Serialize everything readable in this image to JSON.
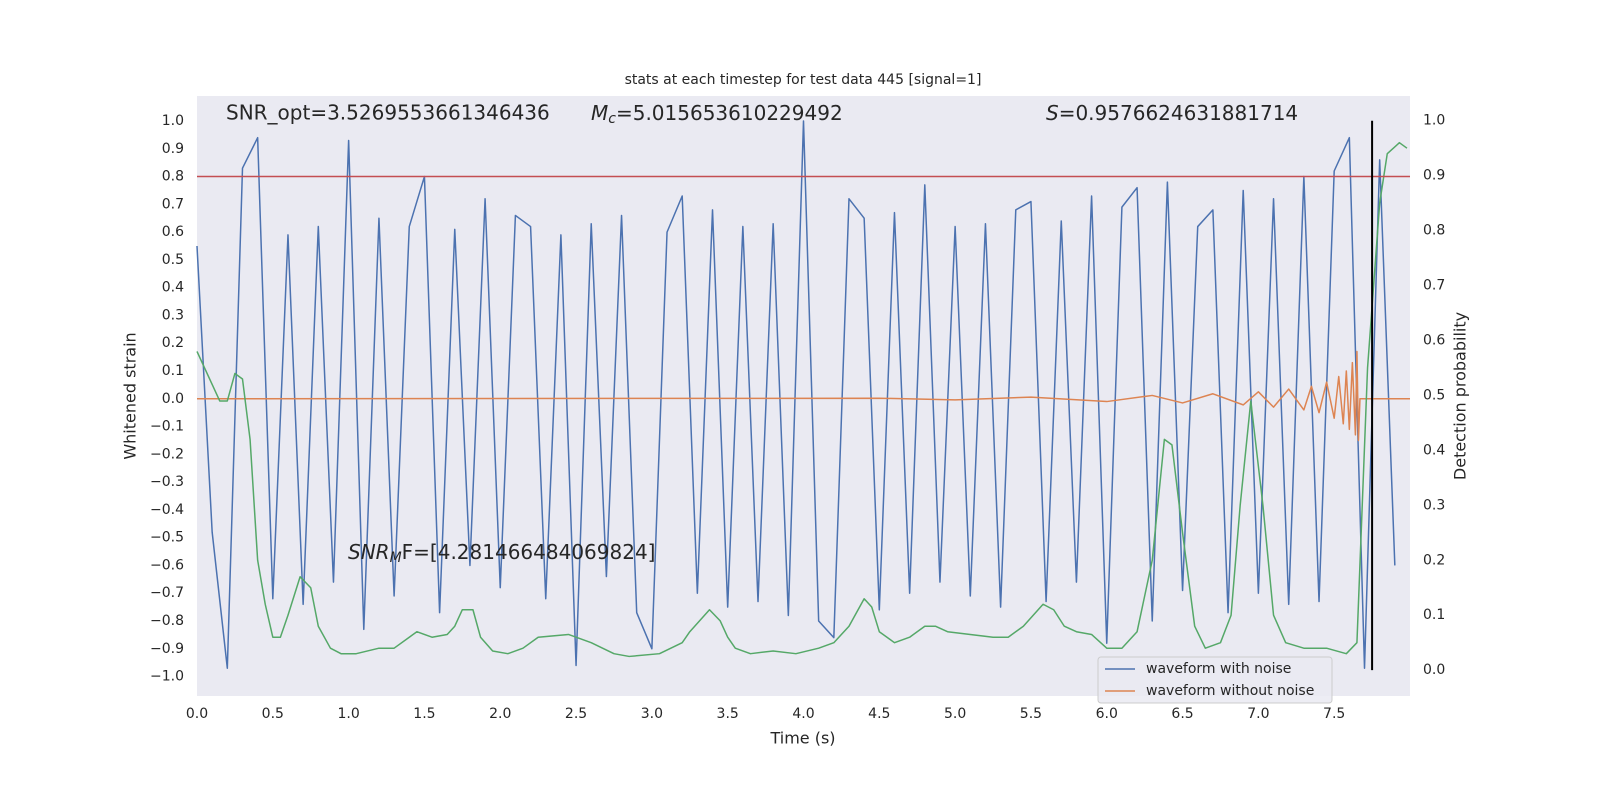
{
  "chart_data": {
    "type": "line",
    "title": "stats at each timestep for test data 445 [signal=1]",
    "xlabel": "Time (s)",
    "ylabel": "Whitened strain",
    "y2label": "Detection probability",
    "annotations": [
      {
        "text": "SNR_opt=3.5269553661346436"
      },
      {
        "symbol": "M",
        "sub": "c",
        "text": "=5.015653610229492"
      },
      {
        "symbol": "S",
        "text": "=0.9576624631881714"
      },
      {
        "symbol": "SNR",
        "sub": "M",
        "text": "F=[4.281466484069824]"
      }
    ],
    "xlim": [
      0,
      8
    ],
    "ylim": [
      -1.07,
      1.09
    ],
    "y2lim": [
      -0.047,
      1.045
    ],
    "xticks": [
      {
        "value": 0,
        "label": "0.0"
      },
      0.5,
      {
        "value": 1,
        "label": "1.0"
      },
      1.5,
      {
        "value": 2,
        "label": "2.0"
      },
      2.5,
      {
        "value": 3,
        "label": "3.0"
      },
      3.5,
      {
        "value": 4,
        "label": "4.0"
      },
      4.5,
      {
        "value": 5,
        "label": "5.0"
      },
      5.5,
      {
        "value": 6,
        "label": "6.0"
      },
      6.5,
      {
        "value": 7,
        "label": "7.0"
      },
      7.5
    ],
    "yticks": [
      {
        "value": -1,
        "label": "−1.0"
      },
      {
        "value": -0.9,
        "label": "−0.9"
      },
      {
        "value": -0.8,
        "label": "−0.8"
      },
      {
        "value": -0.7,
        "label": "−0.7"
      },
      {
        "value": -0.6,
        "label": "−0.6"
      },
      {
        "value": -0.5,
        "label": "−0.5"
      },
      {
        "value": -0.4,
        "label": "−0.4"
      },
      {
        "value": -0.3,
        "label": "−0.3"
      },
      {
        "value": -0.2,
        "label": "−0.2"
      },
      {
        "value": -0.1,
        "label": "−0.1"
      },
      {
        "value": 0,
        "label": "0.0"
      },
      0.1,
      0.2,
      0.3,
      0.4,
      0.5,
      0.6,
      0.7,
      0.8,
      0.9,
      {
        "value": 1,
        "label": "1.0"
      }
    ],
    "y2ticks": [
      {
        "value": 0,
        "label": "0.0"
      },
      0.1,
      0.2,
      0.3,
      0.4,
      0.5,
      0.6,
      0.7,
      0.8,
      0.9,
      {
        "value": 1,
        "label": "1.0"
      }
    ],
    "grid": true,
    "legend": "lower right",
    "series": [
      {
        "name": "waveform with noise",
        "color": "#4c72b0",
        "x": [
          0,
          0.1,
          0.2,
          0.3,
          0.4,
          0.5,
          0.6,
          0.7,
          0.8,
          0.9,
          1,
          1.1,
          1.2,
          1.3,
          1.4,
          1.5,
          1.6,
          1.7,
          1.8,
          1.9,
          2,
          2.1,
          2.2,
          2.3,
          2.4,
          2.5,
          2.6,
          2.7,
          2.8,
          2.9,
          3,
          3.1,
          3.2,
          3.3,
          3.4,
          3.5,
          3.6,
          3.7,
          3.8,
          3.9,
          4,
          4.1,
          4.2,
          4.3,
          4.4,
          4.5,
          4.6,
          4.7,
          4.8,
          4.9,
          5,
          5.1,
          5.2,
          5.3,
          5.4,
          5.5,
          5.6,
          5.7,
          5.8,
          5.9,
          6,
          6.1,
          6.2,
          6.3,
          6.4,
          6.5,
          6.6,
          6.7,
          6.8,
          6.9,
          7,
          7.1,
          7.2,
          7.3,
          7.4,
          7.5,
          7.6,
          7.7,
          7.8,
          7.9
        ],
        "values": [
          0.55,
          -0.48,
          -0.97,
          0.83,
          0.94,
          -0.72,
          0.59,
          -0.74,
          0.62,
          -0.66,
          0.93,
          -0.83,
          0.65,
          -0.71,
          0.62,
          0.8,
          -0.77,
          0.61,
          -0.6,
          0.72,
          -0.68,
          0.66,
          0.62,
          -0.72,
          0.59,
          -0.96,
          0.63,
          -0.64,
          0.66,
          -0.77,
          -0.9,
          0.6,
          0.73,
          -0.7,
          0.68,
          -0.75,
          0.62,
          -0.73,
          0.63,
          -0.78,
          1.0,
          -0.8,
          -0.86,
          0.72,
          0.65,
          -0.76,
          0.67,
          -0.7,
          0.77,
          -0.66,
          0.62,
          -0.71,
          0.63,
          -0.75,
          0.68,
          0.71,
          -0.73,
          0.64,
          -0.66,
          0.73,
          -0.88,
          0.69,
          0.76,
          -0.8,
          0.78,
          -0.69,
          0.62,
          0.68,
          -0.77,
          0.75,
          -0.7,
          0.72,
          -0.74,
          0.8,
          -0.73,
          0.82,
          0.94,
          -0.97,
          0.86,
          -0.6
        ]
      },
      {
        "name": "waveform without noise",
        "color": "#dd8452",
        "x": [
          0,
          4.5,
          5.0,
          5.5,
          6.0,
          6.3,
          6.5,
          6.7,
          6.9,
          7.0,
          7.1,
          7.2,
          7.3,
          7.35,
          7.4,
          7.45,
          7.5,
          7.53,
          7.56,
          7.58,
          7.6,
          7.62,
          7.64,
          7.65,
          7.66,
          7.67,
          8.0
        ],
        "values": [
          0,
          0.002,
          -0.004,
          0.006,
          -0.01,
          0.012,
          -0.015,
          0.018,
          -0.022,
          0.025,
          -0.03,
          0.035,
          -0.04,
          0.045,
          -0.05,
          0.06,
          -0.07,
          0.08,
          -0.09,
          0.1,
          -0.11,
          0.13,
          -0.13,
          0.17,
          -0.15,
          0,
          0
        ]
      },
      {
        "color": "#55a868",
        "axis": "y2",
        "x": [
          0,
          0.1,
          0.15,
          0.2,
          0.25,
          0.3,
          0.35,
          0.4,
          0.45,
          0.5,
          0.55,
          0.6,
          0.68,
          0.75,
          0.8,
          0.88,
          0.95,
          1.05,
          1.2,
          1.3,
          1.4,
          1.45,
          1.55,
          1.65,
          1.7,
          1.75,
          1.82,
          1.87,
          1.95,
          2.05,
          2.15,
          2.25,
          2.45,
          2.6,
          2.75,
          2.85,
          3.05,
          3.2,
          3.25,
          3.38,
          3.45,
          3.5,
          3.55,
          3.65,
          3.8,
          3.95,
          4.1,
          4.2,
          4.3,
          4.4,
          4.45,
          4.5,
          4.6,
          4.7,
          4.8,
          4.87,
          4.95,
          5.1,
          5.25,
          5.35,
          5.45,
          5.58,
          5.65,
          5.72,
          5.8,
          5.9,
          6.0,
          6.1,
          6.2,
          6.3,
          6.38,
          6.43,
          6.5,
          6.58,
          6.65,
          6.75,
          6.82,
          6.88,
          6.95,
          7.03,
          7.1,
          7.18,
          7.3,
          7.45,
          7.58,
          7.65,
          7.72,
          7.8,
          7.85,
          7.93,
          7.98
        ],
        "values": [
          0.58,
          0.52,
          0.49,
          0.49,
          0.54,
          0.53,
          0.42,
          0.2,
          0.12,
          0.06,
          0.06,
          0.1,
          0.17,
          0.15,
          0.08,
          0.04,
          0.03,
          0.03,
          0.04,
          0.04,
          0.06,
          0.07,
          0.06,
          0.065,
          0.08,
          0.11,
          0.11,
          0.06,
          0.035,
          0.03,
          0.04,
          0.06,
          0.065,
          0.05,
          0.03,
          0.025,
          0.03,
          0.05,
          0.07,
          0.11,
          0.09,
          0.06,
          0.04,
          0.03,
          0.035,
          0.03,
          0.04,
          0.05,
          0.08,
          0.13,
          0.115,
          0.07,
          0.05,
          0.06,
          0.08,
          0.08,
          0.07,
          0.065,
          0.06,
          0.06,
          0.08,
          0.12,
          0.11,
          0.08,
          0.07,
          0.065,
          0.04,
          0.04,
          0.07,
          0.2,
          0.42,
          0.41,
          0.25,
          0.08,
          0.04,
          0.05,
          0.1,
          0.3,
          0.49,
          0.3,
          0.1,
          0.05,
          0.04,
          0.04,
          0.03,
          0.05,
          0.55,
          0.85,
          0.94,
          0.96,
          0.95
        ]
      }
    ],
    "hline": {
      "y": 0.8,
      "color": "#c44e52"
    },
    "vline": {
      "x": 7.75,
      "y2": [
        0,
        1
      ],
      "color": "#000000"
    }
  }
}
